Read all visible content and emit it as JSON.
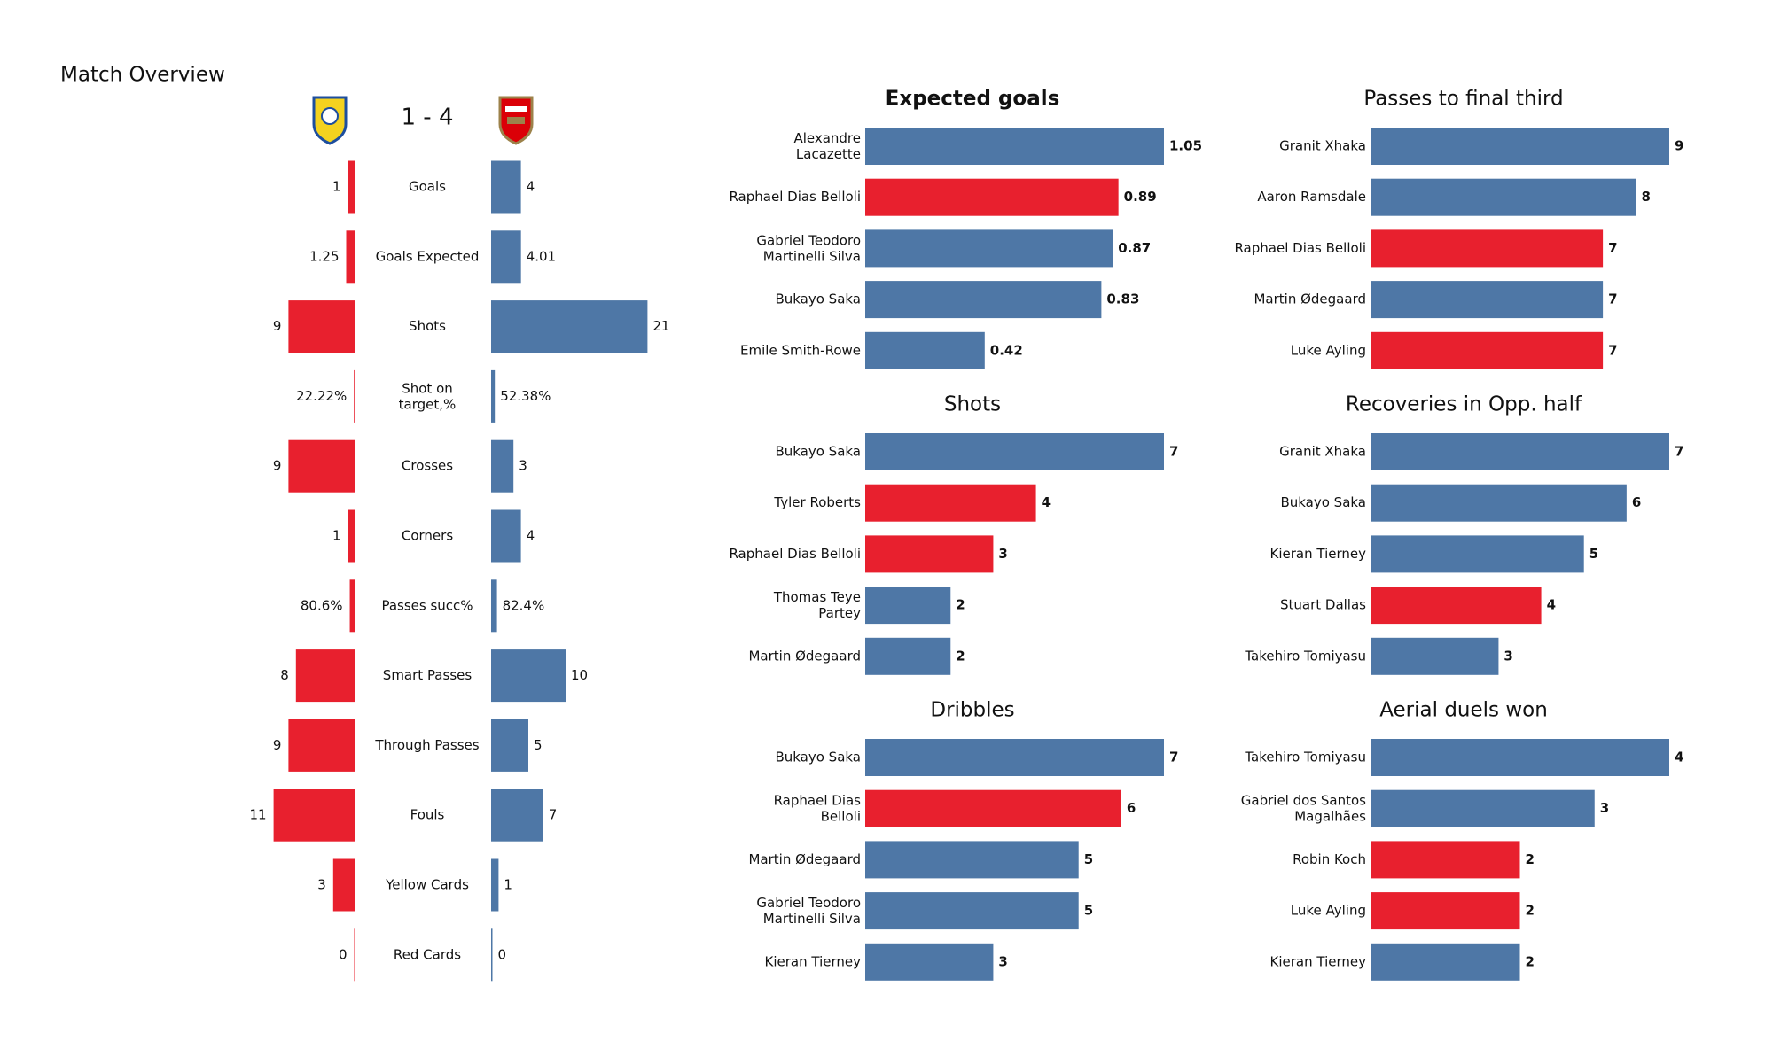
{
  "chart_data": [
    {
      "type": "comparison",
      "title": "Match Overview",
      "score": "1 - 4",
      "categories": [
        "Goals",
        "Goals Expected",
        "Shots",
        "Shot on\ntarget,%",
        "Crosses",
        "Corners",
        "Passes succ%",
        "Smart Passes",
        "Through Passes",
        "Fouls",
        "Yellow Cards",
        "Red Cards"
      ],
      "home_values": [
        1,
        1.25,
        9,
        22.22,
        9,
        1,
        80.6,
        8,
        9,
        11,
        3,
        0
      ],
      "home_value_labels": [
        null,
        null,
        null,
        "22.22%",
        null,
        null,
        "80.6%",
        null,
        null,
        null,
        null,
        null
      ],
      "away_values": [
        4,
        4.01,
        21,
        52.38,
        3,
        4,
        82.4,
        10,
        5,
        7,
        1,
        0
      ],
      "away_value_labels": [
        null,
        null,
        null,
        "52.38%",
        null,
        null,
        "82.4%",
        null,
        null,
        null,
        null,
        null
      ],
      "home_color": "#e8202e",
      "away_color": "#4e77a6"
    },
    {
      "type": "hbar",
      "title": "Expected goals",
      "bold_title": true,
      "categories": [
        "Alexandre\nLacazette",
        "Raphael Dias Belloli",
        "Gabriel Teodoro\nMartinelli Silva",
        "Bukayo Saka",
        "Emile Smith-Rowe"
      ],
      "values": [
        1.05,
        0.89,
        0.87,
        0.83,
        0.42
      ],
      "colors": [
        "#4e77a6",
        "#e8202e",
        "#4e77a6",
        "#4e77a6",
        "#4e77a6"
      ]
    },
    {
      "type": "hbar",
      "title": "Passes to final third",
      "categories": [
        "Granit Xhaka",
        "Aaron Ramsdale",
        "Raphael Dias Belloli",
        "Martin Ødegaard",
        "Luke Ayling"
      ],
      "values": [
        9,
        8,
        7,
        7,
        7
      ],
      "colors": [
        "#4e77a6",
        "#4e77a6",
        "#e8202e",
        "#4e77a6",
        "#e8202e"
      ]
    },
    {
      "type": "hbar",
      "title": "Shots",
      "categories": [
        "Bukayo Saka",
        "Tyler Roberts",
        "Raphael Dias Belloli",
        "Thomas Teye\nPartey",
        "Martin Ødegaard"
      ],
      "values": [
        7,
        4,
        3,
        2,
        2
      ],
      "colors": [
        "#4e77a6",
        "#e8202e",
        "#e8202e",
        "#4e77a6",
        "#4e77a6"
      ]
    },
    {
      "type": "hbar",
      "title": "Recoveries in Opp. half",
      "categories": [
        "Granit Xhaka",
        "Bukayo Saka",
        "Kieran Tierney",
        "Stuart Dallas",
        "Takehiro Tomiyasu"
      ],
      "values": [
        7,
        6,
        5,
        4,
        3
      ],
      "colors": [
        "#4e77a6",
        "#4e77a6",
        "#4e77a6",
        "#e8202e",
        "#4e77a6"
      ]
    },
    {
      "type": "hbar",
      "title": "Dribbles",
      "categories": [
        "Bukayo Saka",
        "Raphael Dias\nBelloli",
        "Martin Ødegaard",
        "Gabriel Teodoro\nMartinelli Silva",
        "Kieran Tierney"
      ],
      "values": [
        7,
        6,
        5,
        5,
        3
      ],
      "colors": [
        "#4e77a6",
        "#e8202e",
        "#4e77a6",
        "#4e77a6",
        "#4e77a6"
      ]
    },
    {
      "type": "hbar",
      "title": "Aerial duels won",
      "categories": [
        "Takehiro Tomiyasu",
        "Gabriel dos Santos\nMagalhães",
        "Robin Koch",
        "Luke Ayling",
        "Kieran Tierney"
      ],
      "values": [
        4,
        3,
        2,
        2,
        2
      ],
      "colors": [
        "#4e77a6",
        "#4e77a6",
        "#e8202e",
        "#e8202e",
        "#4e77a6"
      ]
    }
  ]
}
